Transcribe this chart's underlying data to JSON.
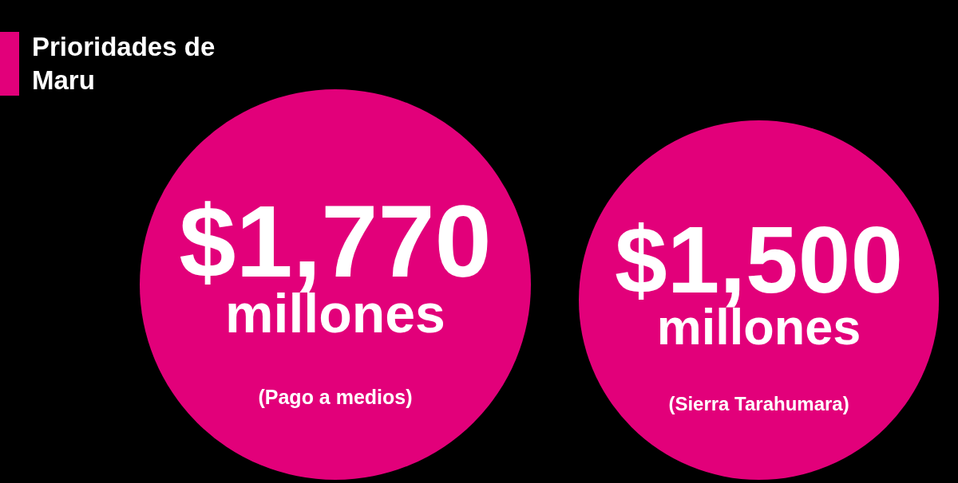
{
  "chart_data": {
    "type": "other",
    "title": "Prioridades de Maru",
    "categories": [
      "(Pago a medios)",
      "(Sierra Tarahumara)"
    ],
    "values": [
      1770,
      1500
    ],
    "value_labels": [
      "$1,770 millones",
      "$1,500 millones"
    ],
    "colors": [
      "#e2007a",
      "#e2007a"
    ]
  }
}
